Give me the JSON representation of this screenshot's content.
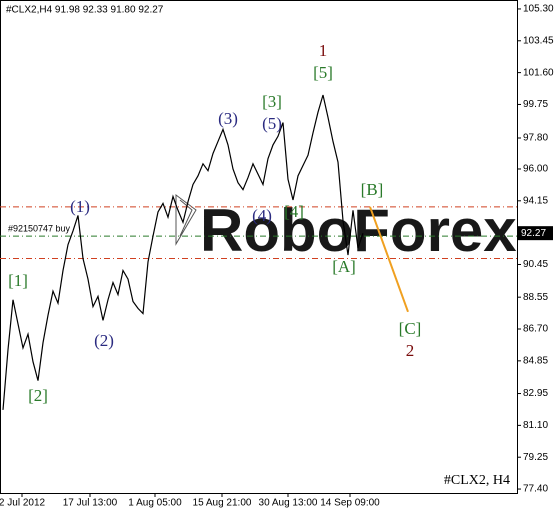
{
  "chart_data": {
    "type": "line",
    "header": "#CLX2,H4  91.98 92.33 91.80 92.27",
    "footer": "#CLX2, H4",
    "watermark": "RoboForex",
    "color": "#000000",
    "values": [
      82.0,
      85.5,
      88.4,
      87.0,
      85.6,
      86.4,
      84.8,
      83.7,
      85.9,
      87.5,
      88.9,
      88.2,
      90.1,
      91.6,
      92.4,
      93.3,
      90.8,
      89.6,
      88.0,
      88.6,
      87.2,
      88.4,
      89.4,
      88.7,
      90.1,
      89.6,
      88.3,
      87.9,
      87.6,
      90.6,
      92.1,
      93.5,
      94.0,
      93.2,
      94.4,
      93.6,
      92.9,
      94.1,
      95.1,
      95.6,
      96.3,
      95.9,
      96.9,
      97.6,
      98.3,
      97.4,
      96.0,
      95.2,
      94.8,
      95.5,
      96.3,
      95.7,
      95.1,
      96.6,
      97.4,
      97.9,
      98.7,
      95.4,
      94.2,
      95.6,
      96.2,
      96.8,
      98.1,
      99.3,
      100.3,
      99.0,
      97.6,
      96.4,
      93.0,
      91.0,
      93.6,
      91.4,
      92.27
    ],
    "xlim": [
      -0.6,
      102.8
    ],
    "xticks": [
      {
        "value": 3.8,
        "label": "2 Jul 2012"
      },
      {
        "value": 17.4,
        "label": "17 Jul 13:00"
      },
      {
        "value": 30.4,
        "label": "1 Aug 05:00"
      },
      {
        "value": 43.8,
        "label": "15 Aug 21:00"
      },
      {
        "value": 57,
        "label": "30 Aug 13:00"
      },
      {
        "value": 69.4,
        "label": "14 Sep 09:00"
      }
    ],
    "ylim": [
      77.17,
      105.82
    ],
    "yticks": [
      {
        "value": 105.3,
        "label": "105.30"
      },
      {
        "value": 103.45,
        "label": "103.45"
      },
      {
        "value": 101.6,
        "label": "101.60"
      },
      {
        "value": 99.75,
        "label": "99.75"
      },
      {
        "value": 97.8,
        "label": "97.80"
      },
      {
        "value": 96.0,
        "label": "96.00"
      },
      {
        "value": 94.15,
        "label": "94.15"
      },
      {
        "value": 90.45,
        "label": "90.45"
      },
      {
        "value": 88.55,
        "label": "88.55"
      },
      {
        "value": 86.7,
        "label": "86.70"
      },
      {
        "value": 84.85,
        "label": "84.85"
      },
      {
        "value": 82.95,
        "label": "82.95"
      },
      {
        "value": 81.1,
        "label": "81.10"
      },
      {
        "value": 79.25,
        "label": "79.25"
      },
      {
        "value": 77.4,
        "label": "77.40"
      }
    ],
    "current_price": 92.27,
    "levels": [
      {
        "value": 93.8,
        "color": "#d04020"
      },
      {
        "value": 92.1,
        "color": "#2a7a2a",
        "label": "#92150747 buy"
      },
      {
        "value": 90.8,
        "color": "#d04020"
      }
    ],
    "forecast": {
      "color": "#f0a020",
      "x": [
        73.4,
        81
      ],
      "values": [
        93.8,
        87.7
      ]
    },
    "annotations": [
      {
        "text": "1",
        "color": "#7a0c0c"
      },
      {
        "text": "[5]",
        "color": "#2a7a2a"
      },
      {
        "text": "[3]",
        "color": "#2a7a2a"
      },
      {
        "text": "(3)",
        "color": "#2a2a80"
      },
      {
        "text": "(5)",
        "color": "#2a2a80"
      },
      {
        "text": "[B]",
        "color": "#2a7a2a"
      },
      {
        "text": "(1)",
        "color": "#2a2a80"
      },
      {
        "text": "(4)",
        "color": "#2a2a80"
      },
      {
        "text": "[4]",
        "color": "#2a7a2a"
      },
      {
        "text": "[A]",
        "color": "#2a7a2a"
      },
      {
        "text": "[1]",
        "color": "#2a7a2a"
      },
      {
        "text": "(2)",
        "color": "#2a2a80"
      },
      {
        "text": "[C]",
        "color": "#2a7a2a"
      },
      {
        "text": "2",
        "color": "#7a0c0c"
      },
      {
        "text": "[2]",
        "color": "#2a7a2a"
      }
    ]
  }
}
